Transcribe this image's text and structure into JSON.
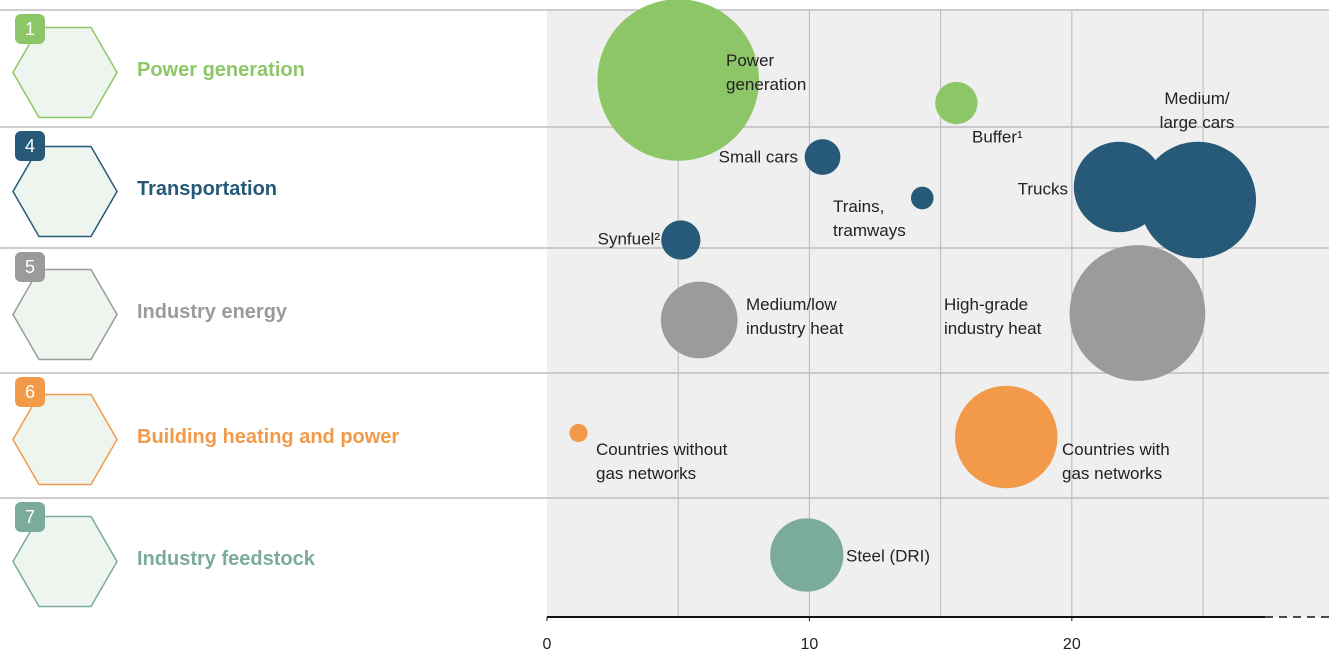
{
  "chart_data": {
    "type": "bubble",
    "xlim": [
      0,
      29.8
    ],
    "xticks": [
      0,
      10,
      20
    ],
    "xgrid": [
      5,
      10,
      15,
      20,
      25
    ],
    "series": [
      {
        "badge": "1",
        "name": "Power generation",
        "color": "#8dc667",
        "x": [
          5.0,
          15.6
        ],
        "sizes": [
          102,
          7
        ],
        "labels": [
          "Power\ngeneration",
          "Buffer¹"
        ]
      },
      {
        "badge": "4",
        "name": "Transportation",
        "color": "#265a78",
        "x": [
          10.5,
          14.3,
          21.8,
          24.8,
          5.1
        ],
        "sizes": [
          5,
          2,
          32,
          53,
          6
        ],
        "labels": [
          "Small cars",
          "Trains,\ntramways",
          "Trucks",
          "Medium/\nlarge cars",
          "Synfuel²"
        ]
      },
      {
        "badge": "5",
        "name": "Industry energy",
        "color": "#9b9b9b",
        "x": [
          5.8,
          22.5
        ],
        "sizes": [
          23,
          72
        ],
        "labels": [
          "Medium/low\nindustry heat",
          "High-grade\nindustry heat"
        ]
      },
      {
        "badge": "6",
        "name": "Building heating and power",
        "color": "#f29a4a",
        "x": [
          1.2,
          17.5
        ],
        "sizes": [
          1.3,
          41
        ],
        "labels": [
          "Countries without\ngas networks",
          "Countries with\ngas networks"
        ]
      },
      {
        "badge": "7",
        "name": "Industry feedstock",
        "color": "#7aab9c",
        "x": [
          9.9
        ],
        "sizes": [
          21
        ],
        "labels": [
          "Steel (DRI)"
        ]
      }
    ]
  }
}
